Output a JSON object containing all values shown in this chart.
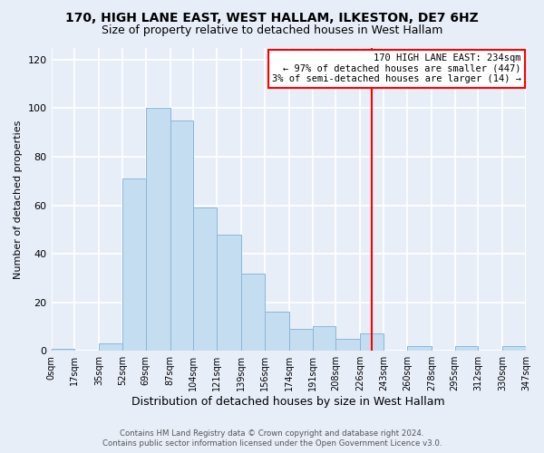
{
  "title": "170, HIGH LANE EAST, WEST HALLAM, ILKESTON, DE7 6HZ",
  "subtitle": "Size of property relative to detached houses in West Hallam",
  "xlabel": "Distribution of detached houses by size in West Hallam",
  "ylabel": "Number of detached properties",
  "bar_color": "#c5ddf0",
  "bar_edge_color": "#8ab8d8",
  "background_color": "#e8eef8",
  "grid_color": "white",
  "bin_edges": [
    0,
    17,
    35,
    52,
    69,
    87,
    104,
    121,
    139,
    156,
    174,
    191,
    208,
    226,
    243,
    260,
    278,
    295,
    312,
    330,
    347
  ],
  "bin_labels": [
    "0sqm",
    "17sqm",
    "35sqm",
    "52sqm",
    "69sqm",
    "87sqm",
    "104sqm",
    "121sqm",
    "139sqm",
    "156sqm",
    "174sqm",
    "191sqm",
    "208sqm",
    "226sqm",
    "243sqm",
    "260sqm",
    "278sqm",
    "295sqm",
    "312sqm",
    "330sqm",
    "347sqm"
  ],
  "counts": [
    1,
    0,
    3,
    71,
    100,
    95,
    59,
    48,
    32,
    16,
    9,
    10,
    5,
    7,
    0,
    2,
    0,
    2,
    0,
    2
  ],
  "red_line_x": 234,
  "ylim": [
    0,
    125
  ],
  "yticks": [
    0,
    20,
    40,
    60,
    80,
    100,
    120
  ],
  "annotation_title": "170 HIGH LANE EAST: 234sqm",
  "annotation_line1": "← 97% of detached houses are smaller (447)",
  "annotation_line2": "3% of semi-detached houses are larger (14) →",
  "footer_line1": "Contains HM Land Registry data © Crown copyright and database right 2024.",
  "footer_line2": "Contains public sector information licensed under the Open Government Licence v3.0."
}
